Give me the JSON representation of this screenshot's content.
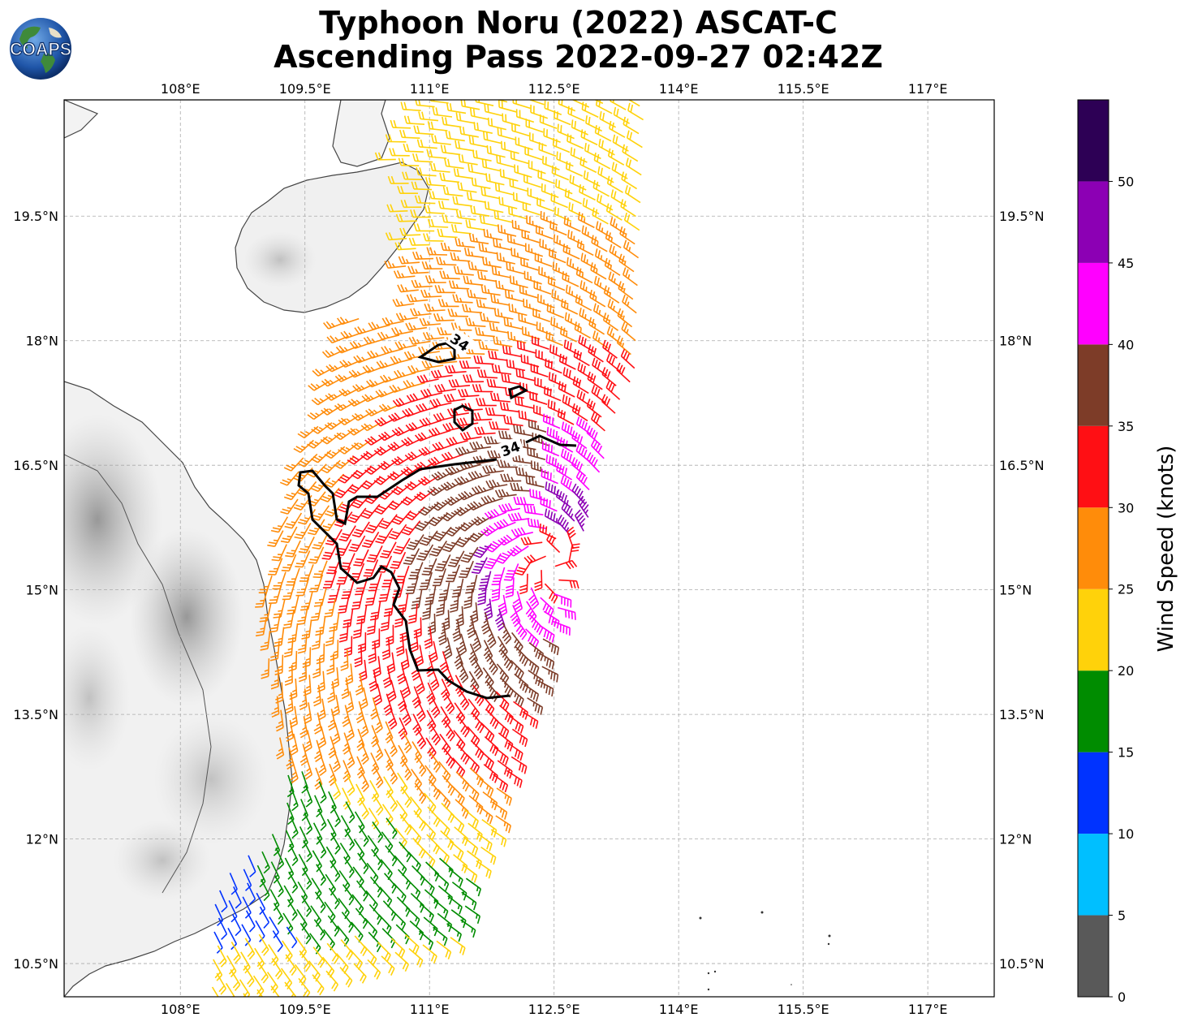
{
  "title": {
    "line1": "Typhoon Noru (2022) ASCAT-C",
    "line2": "Ascending Pass 2022-09-27 02:42Z"
  },
  "logo": {
    "text": "COAPS",
    "icon": "globe-logo-icon"
  },
  "map": {
    "lon_ticks": [
      "108°E",
      "109.5°E",
      "111°E",
      "112.5°E",
      "114°E",
      "115.5°E",
      "117°E"
    ],
    "lon_values": [
      108,
      109.5,
      111,
      112.5,
      114,
      115.5,
      117
    ],
    "lat_ticks": [
      "19.5°N",
      "18°N",
      "16.5°N",
      "15°N",
      "13.5°N",
      "12°N",
      "10.5°N"
    ],
    "lat_values": [
      19.5,
      18,
      16.5,
      15,
      13.5,
      12,
      10.5
    ],
    "lon_range": [
      106.6,
      117.8
    ],
    "lat_range": [
      10.1,
      20.9
    ],
    "storm_center": [
      112.5,
      15.3
    ],
    "contour_labels": [
      "34",
      "34"
    ],
    "grid": true
  },
  "colorbar": {
    "label": "Wind Speed (knots)",
    "ticks": [
      "0",
      "5",
      "10",
      "15",
      "20",
      "25",
      "30",
      "35",
      "40",
      "45",
      "50"
    ],
    "bins": [
      {
        "from": 0,
        "to": 5,
        "color": "#595959"
      },
      {
        "from": 5,
        "to": 10,
        "color": "#00bfff"
      },
      {
        "from": 10,
        "to": 15,
        "color": "#0033ff"
      },
      {
        "from": 15,
        "to": 20,
        "color": "#008c00"
      },
      {
        "from": 20,
        "to": 25,
        "color": "#ffd20a"
      },
      {
        "from": 25,
        "to": 30,
        "color": "#ff8c0a"
      },
      {
        "from": 30,
        "to": 35,
        "color": "#ff0f14"
      },
      {
        "from": 35,
        "to": 40,
        "color": "#7d3c28"
      },
      {
        "from": 40,
        "to": 45,
        "color": "#ff00ff"
      },
      {
        "from": 45,
        "to": 50,
        "color": "#8c00b4"
      },
      {
        "from": 50,
        "to": 55,
        "color": "#2d0055"
      }
    ]
  }
}
